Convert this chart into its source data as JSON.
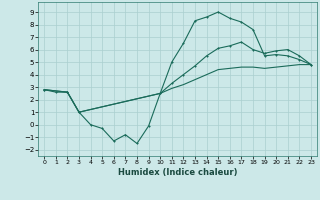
{
  "xlabel": "Humidex (Indice chaleur)",
  "bg_color": "#cce8e8",
  "grid_color": "#aacfcf",
  "line_color": "#1a6b5a",
  "xlim": [
    -0.5,
    23.5
  ],
  "ylim": [
    -2.5,
    9.8
  ],
  "xticks": [
    0,
    1,
    2,
    3,
    4,
    5,
    6,
    7,
    8,
    9,
    10,
    11,
    12,
    13,
    14,
    15,
    16,
    17,
    18,
    19,
    20,
    21,
    22,
    23
  ],
  "yticks": [
    -2,
    -1,
    0,
    1,
    2,
    3,
    4,
    5,
    6,
    7,
    8,
    9
  ],
  "series1_x": [
    0,
    1,
    2,
    3,
    4,
    5,
    6,
    7,
    8,
    9,
    10,
    11,
    12,
    13,
    14,
    15,
    16,
    17,
    18,
    19,
    20,
    21,
    22,
    23
  ],
  "series1_y": [
    2.8,
    2.6,
    2.6,
    1.0,
    0.0,
    -0.3,
    -1.3,
    -0.8,
    -1.5,
    -0.1,
    2.5,
    5.0,
    6.5,
    8.3,
    8.6,
    9.0,
    8.5,
    8.2,
    7.6,
    5.5,
    5.6,
    5.5,
    5.2,
    4.8
  ],
  "series2_x": [
    0,
    2,
    3,
    10,
    11,
    12,
    13,
    14,
    15,
    16,
    17,
    18,
    19,
    20,
    21,
    22,
    23
  ],
  "series2_y": [
    2.8,
    2.6,
    1.0,
    2.5,
    3.3,
    4.0,
    4.7,
    5.5,
    6.1,
    6.3,
    6.6,
    6.0,
    5.7,
    5.9,
    6.0,
    5.5,
    4.8
  ],
  "series3_x": [
    0,
    2,
    3,
    10,
    11,
    12,
    13,
    14,
    15,
    16,
    17,
    18,
    19,
    20,
    21,
    22,
    23
  ],
  "series3_y": [
    2.8,
    2.6,
    1.0,
    2.5,
    2.9,
    3.2,
    3.6,
    4.0,
    4.4,
    4.5,
    4.6,
    4.6,
    4.5,
    4.6,
    4.7,
    4.8,
    4.8
  ]
}
